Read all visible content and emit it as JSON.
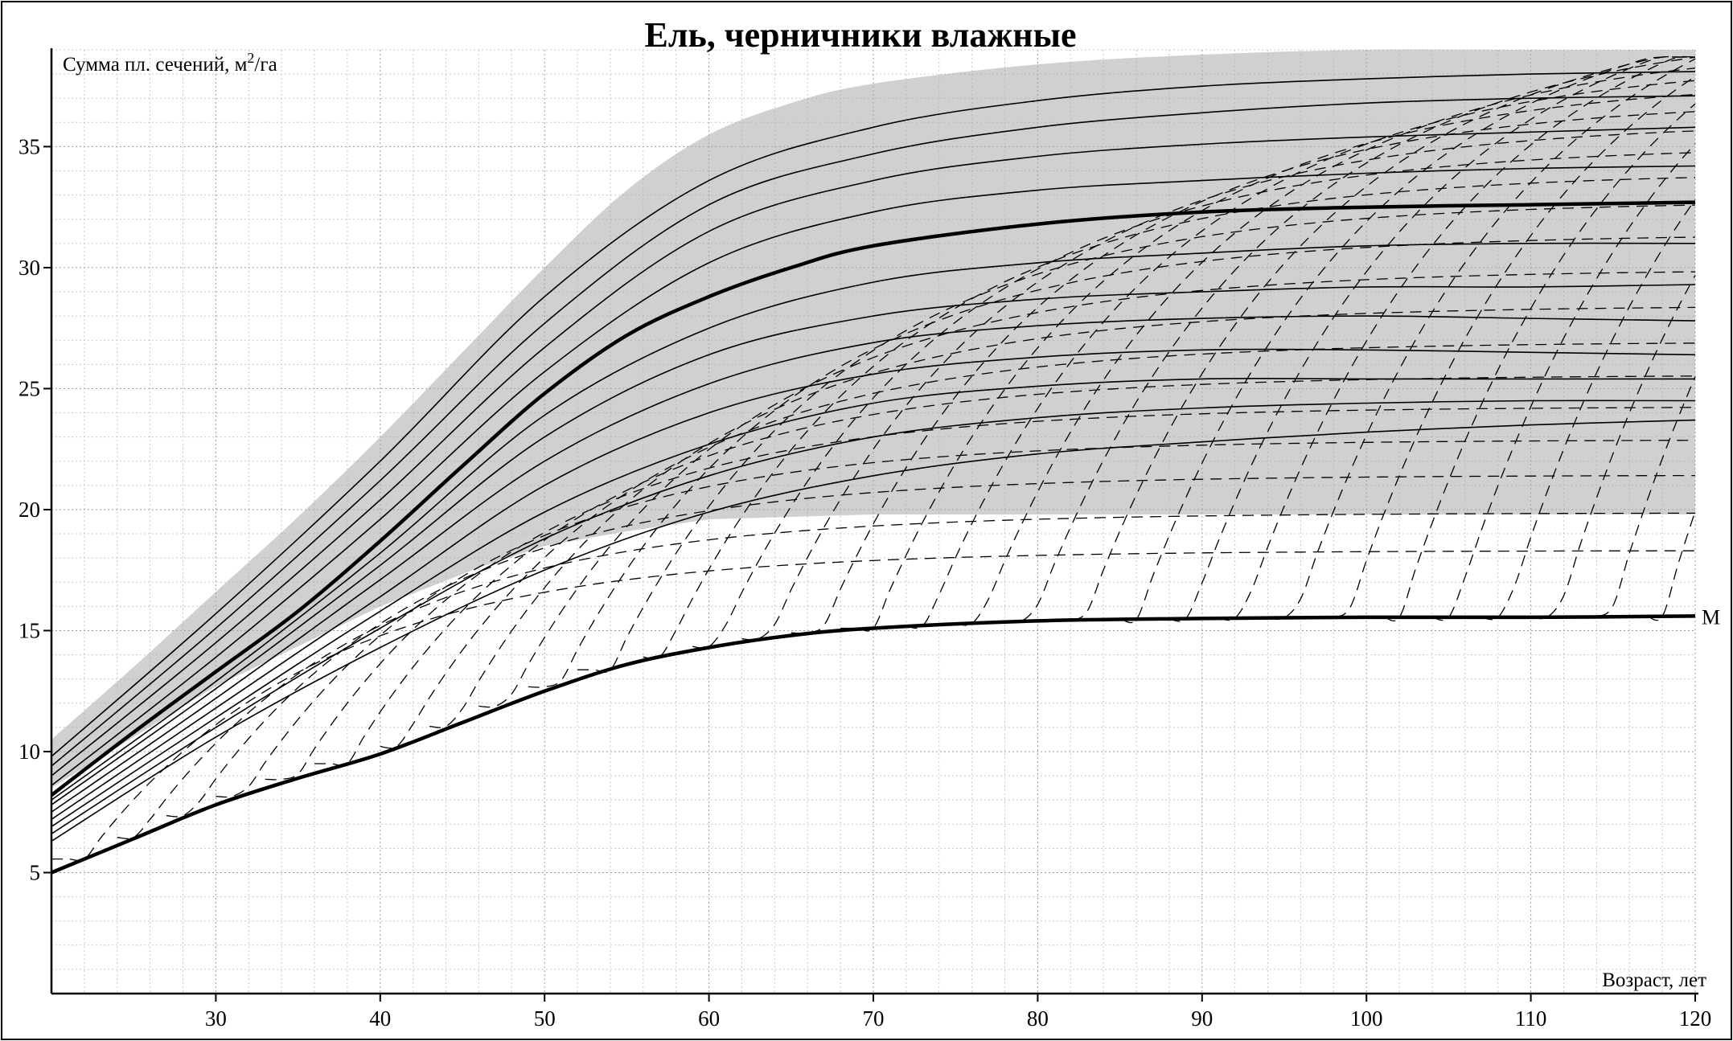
{
  "chart_data": {
    "type": "line",
    "title": "Ель, черничники влажные",
    "ylabel_main": "Сумма пл. сечений, м",
    "ylabel_sup": "2",
    "ylabel_tail": "/га",
    "xlabel": "Возраст, лет",
    "xlim": [
      20,
      120
    ],
    "ylim": [
      0,
      39
    ],
    "x_ticks": [
      30,
      40,
      50,
      60,
      70,
      80,
      90,
      100,
      110,
      120
    ],
    "y_ticks": [
      5,
      10,
      15,
      20,
      25,
      30,
      35
    ],
    "x_tick_labels": [
      "30",
      "40",
      "50",
      "60",
      "70",
      "80",
      "90",
      "100",
      "110",
      "120"
    ],
    "y_tick_labels": [
      "5",
      "10",
      "15",
      "20",
      "25",
      "30",
      "35"
    ],
    "grid": "dotted, minor and major",
    "shaded_band": {
      "color": "#a9a9a9",
      "lower": {
        "x": [
          20,
          30,
          40,
          46,
          50,
          55,
          60,
          70,
          80,
          90,
          100,
          110,
          120
        ],
        "y": [
          8.5,
          12.7,
          16.0,
          17.6,
          18.5,
          19.1,
          19.6,
          19.8,
          19.8,
          19.8,
          19.8,
          19.8,
          19.8
        ]
      },
      "upper": {
        "x": [
          20,
          25,
          30,
          35,
          40,
          45,
          50,
          55,
          60,
          65,
          70,
          80,
          90,
          100,
          110,
          120
        ],
        "y": [
          10.5,
          13.5,
          16.6,
          19.7,
          23.0,
          26.5,
          30.0,
          33.2,
          35.5,
          36.8,
          37.6,
          38.4,
          38.8,
          39.0,
          39.0,
          39.0
        ]
      }
    },
    "series": [
      {
        "name": "M",
        "style": "bold",
        "x": [
          20,
          25,
          30,
          35,
          40,
          45,
          50,
          55,
          60,
          65,
          70,
          80,
          90,
          100,
          110,
          120
        ],
        "y": [
          5.0,
          6.4,
          7.8,
          8.9,
          9.9,
          11.2,
          12.5,
          13.6,
          14.3,
          14.8,
          15.1,
          15.4,
          15.5,
          15.55,
          15.55,
          15.6
        ]
      },
      {
        "style": "bold",
        "x": [
          20,
          25,
          30,
          35,
          40,
          45,
          50,
          55,
          60,
          65,
          70,
          80,
          90,
          100,
          110,
          120
        ],
        "y": [
          8.2,
          10.8,
          13.3,
          15.8,
          18.7,
          21.8,
          24.8,
          27.2,
          28.8,
          30.0,
          30.9,
          31.8,
          32.3,
          32.5,
          32.6,
          32.7
        ]
      },
      {
        "style": "thin",
        "x": [
          20,
          30,
          40,
          50,
          60,
          70,
          80,
          90,
          100,
          110,
          120
        ],
        "y": [
          6.3,
          10.6,
          14.3,
          17.5,
          19.9,
          21.4,
          22.3,
          22.8,
          23.2,
          23.5,
          23.7
        ]
      },
      {
        "style": "thin",
        "x": [
          20,
          30,
          40,
          50,
          60,
          70,
          80,
          90,
          100,
          110,
          120
        ],
        "y": [
          6.6,
          11.0,
          15.1,
          18.8,
          21.4,
          23.0,
          23.8,
          24.2,
          24.4,
          24.5,
          24.5
        ]
      },
      {
        "style": "thin",
        "x": [
          20,
          30,
          40,
          50,
          60,
          70,
          80,
          90,
          100,
          110,
          120
        ],
        "y": [
          6.9,
          11.4,
          15.8,
          19.9,
          22.7,
          24.4,
          25.1,
          25.4,
          25.4,
          25.4,
          25.4
        ]
      },
      {
        "style": "thin",
        "x": [
          20,
          30,
          40,
          50,
          60,
          70,
          80,
          90,
          100,
          110,
          120
        ],
        "y": [
          7.2,
          11.8,
          16.4,
          21.0,
          24.0,
          25.6,
          26.3,
          26.6,
          26.6,
          26.5,
          26.4
        ]
      },
      {
        "style": "thin",
        "x": [
          20,
          30,
          40,
          50,
          60,
          70,
          80,
          90,
          100,
          110,
          120
        ],
        "y": [
          7.5,
          12.2,
          17.1,
          22.0,
          25.2,
          26.9,
          27.6,
          27.9,
          28.0,
          27.9,
          27.8
        ]
      },
      {
        "style": "thin",
        "x": [
          20,
          30,
          40,
          50,
          60,
          70,
          80,
          90,
          100,
          110,
          120
        ],
        "y": [
          7.8,
          12.6,
          17.7,
          23.0,
          26.4,
          28.0,
          28.7,
          29.0,
          29.2,
          29.2,
          29.3
        ]
      },
      {
        "style": "thin",
        "x": [
          20,
          30,
          40,
          50,
          60,
          70,
          80,
          90,
          100,
          110,
          120
        ],
        "y": [
          8.0,
          12.9,
          18.2,
          23.9,
          27.5,
          29.4,
          30.2,
          30.6,
          30.9,
          31.0,
          31.0
        ]
      },
      {
        "style": "thin",
        "x": [
          20,
          30,
          40,
          50,
          60,
          70,
          80,
          90,
          100,
          110,
          120
        ],
        "y": [
          8.6,
          13.9,
          19.6,
          25.7,
          30.2,
          32.3,
          33.2,
          33.6,
          33.9,
          34.1,
          34.2
        ]
      },
      {
        "style": "thin",
        "x": [
          20,
          30,
          40,
          50,
          60,
          70,
          80,
          90,
          100,
          110,
          120
        ],
        "y": [
          9.0,
          14.5,
          20.4,
          26.7,
          31.5,
          33.6,
          34.6,
          35.1,
          35.4,
          35.6,
          35.8
        ]
      },
      {
        "style": "thin",
        "x": [
          20,
          30,
          40,
          50,
          60,
          70,
          80,
          90,
          100,
          110,
          120
        ],
        "y": [
          9.4,
          15.1,
          21.2,
          27.7,
          32.6,
          34.7,
          35.8,
          36.4,
          36.8,
          37.0,
          37.1
        ]
      },
      {
        "style": "thin",
        "x": [
          20,
          30,
          40,
          50,
          60,
          70,
          80,
          90,
          100,
          110,
          120
        ],
        "y": [
          9.8,
          15.7,
          22.0,
          28.8,
          33.6,
          35.8,
          36.9,
          37.5,
          37.8,
          38.0,
          38.1
        ]
      }
    ],
    "dashed_count": 33,
    "annotations": [
      {
        "text": "M",
        "x": 120,
        "y": 15.6
      }
    ]
  }
}
